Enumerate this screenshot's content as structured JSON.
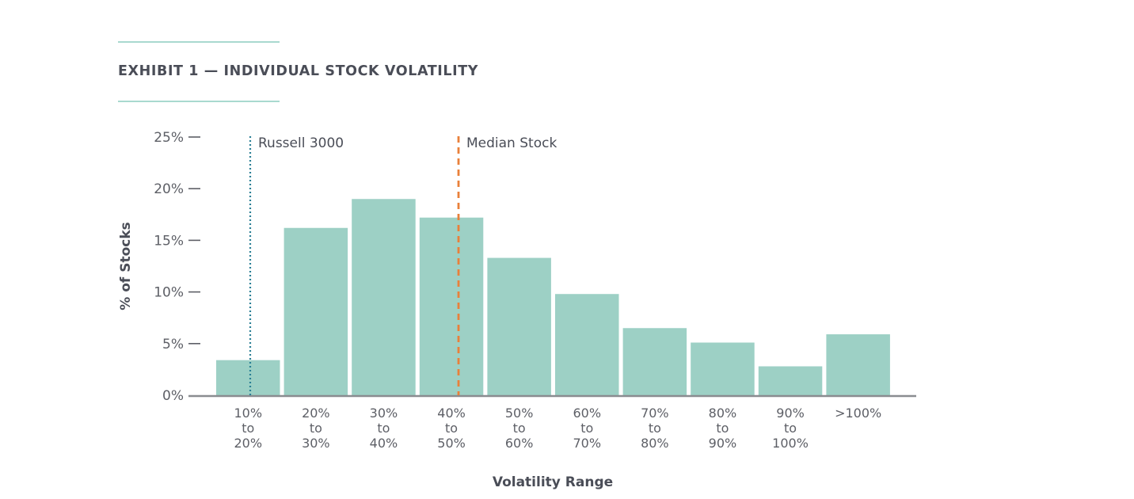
{
  "title": "EXHIBIT 1 — INDIVIDUAL STOCK VOLATILITY",
  "colors": {
    "bar": "#9dd0c5",
    "russell_line": "#2a7f95",
    "median_line": "#e9803a",
    "axis": "#8a8c90",
    "title_rule": "#a9d9cf"
  },
  "chart_data": {
    "type": "bar",
    "title": "EXHIBIT 1 — INDIVIDUAL STOCK VOLATILITY",
    "xlabel": "Volatility Range",
    "ylabel": "% of Stocks",
    "ylim": [
      0,
      25
    ],
    "yticks": [
      "0%",
      "5%",
      "10%",
      "15%",
      "20%",
      "25%"
    ],
    "grid": false,
    "categories": [
      [
        "10%",
        "to",
        "20%"
      ],
      [
        "20%",
        "to",
        "30%"
      ],
      [
        "30%",
        "to",
        "40%"
      ],
      [
        "40%",
        "to",
        "50%"
      ],
      [
        "50%",
        "to",
        "60%"
      ],
      [
        "60%",
        "to",
        "70%"
      ],
      [
        "70%",
        "to",
        "80%"
      ],
      [
        "80%",
        "to",
        "90%"
      ],
      [
        "90%",
        "to",
        "100%"
      ],
      [
        ">100%"
      ]
    ],
    "values": [
      3.4,
      16.2,
      19.0,
      17.2,
      13.3,
      9.8,
      6.5,
      5.1,
      2.8,
      5.9
    ],
    "reference_lines": [
      {
        "label": "Russell 3000",
        "volatility": 15,
        "style": "dotted",
        "color": "#2a7f95"
      },
      {
        "label": "Median Stock",
        "volatility": 45.8,
        "style": "dashed",
        "color": "#e9803a"
      }
    ]
  }
}
